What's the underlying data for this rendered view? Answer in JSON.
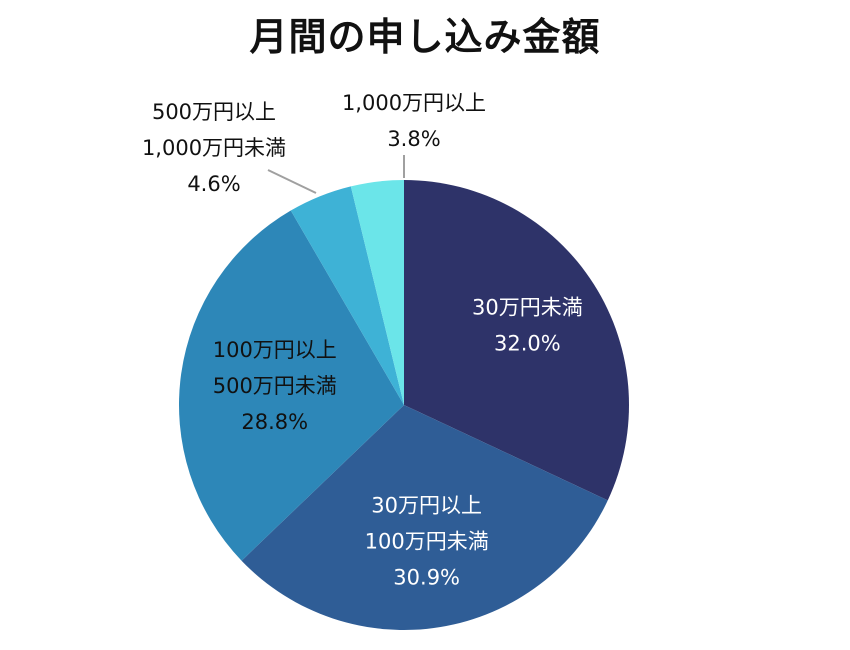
{
  "chart_data": {
    "type": "pie",
    "title": "月間の申し込み金額",
    "start_angle": "top",
    "direction": "clockwise",
    "slices": [
      {
        "lines": [
          "30万円未満"
        ],
        "category": "30万円未満",
        "value": 32.0,
        "value_label": "32.0%",
        "color": "#2e3369",
        "label_color": "#ffffff",
        "label_position": "inside"
      },
      {
        "lines": [
          "30万円以上",
          "100万円未満"
        ],
        "category": "30万円以上100万円未満",
        "value": 30.9,
        "value_label": "30.9%",
        "color": "#2f5d96",
        "label_color": "#ffffff",
        "label_position": "inside"
      },
      {
        "lines": [
          "100万円以上",
          "500万円未満"
        ],
        "category": "100万円以上500万円未満",
        "value": 28.8,
        "value_label": "28.8%",
        "color": "#2d87b8",
        "label_color": "#111111",
        "label_position": "inside"
      },
      {
        "lines": [
          "500万円以上",
          "1,000万円未満"
        ],
        "category": "500万円以上1,000万円未満",
        "value": 4.6,
        "value_label": "4.6%",
        "color": "#3eb2d6",
        "label_color": "#111111",
        "label_position": "outside"
      },
      {
        "lines": [
          "1,000万円以上"
        ],
        "category": "1,000万円以上",
        "value": 3.8,
        "value_label": "3.8%",
        "color": "#6be5e9",
        "label_color": "#111111",
        "label_position": "outside"
      }
    ],
    "leader_line_color": "#a0a0a0"
  }
}
